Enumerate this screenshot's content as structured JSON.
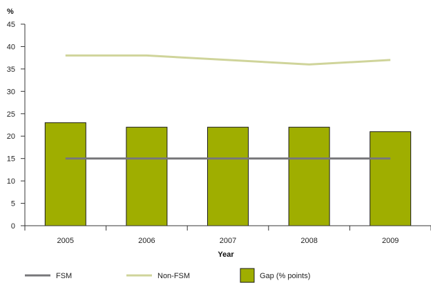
{
  "chart_data": {
    "type": "bar",
    "categories": [
      "2005",
      "2006",
      "2007",
      "2008",
      "2009"
    ],
    "series": [
      {
        "name": "Gap (% points)",
        "kind": "bar",
        "values": [
          23,
          22,
          22,
          22,
          21
        ],
        "color": "#9fae00"
      },
      {
        "name": "FSM",
        "kind": "line",
        "values": [
          15,
          15,
          15,
          15,
          15
        ],
        "color": "#77777a"
      },
      {
        "name": "Non-FSM",
        "kind": "line",
        "values": [
          38,
          38,
          37,
          36,
          37
        ],
        "color": "#cfd49a"
      }
    ],
    "title": "",
    "xlabel": "Year",
    "ylabel": "%",
    "ylim": [
      0,
      45
    ],
    "yticks": [
      0,
      5,
      10,
      15,
      20,
      25,
      30,
      35,
      40,
      45
    ],
    "grid": false,
    "legend_position": "bottom",
    "legend": [
      {
        "label": "FSM",
        "symbol": "line",
        "color": "#77777a"
      },
      {
        "label": "Non-FSM",
        "symbol": "line",
        "color": "#cfd49a"
      },
      {
        "label": "Gap (% points)",
        "symbol": "box",
        "color": "#9fae00"
      }
    ]
  }
}
